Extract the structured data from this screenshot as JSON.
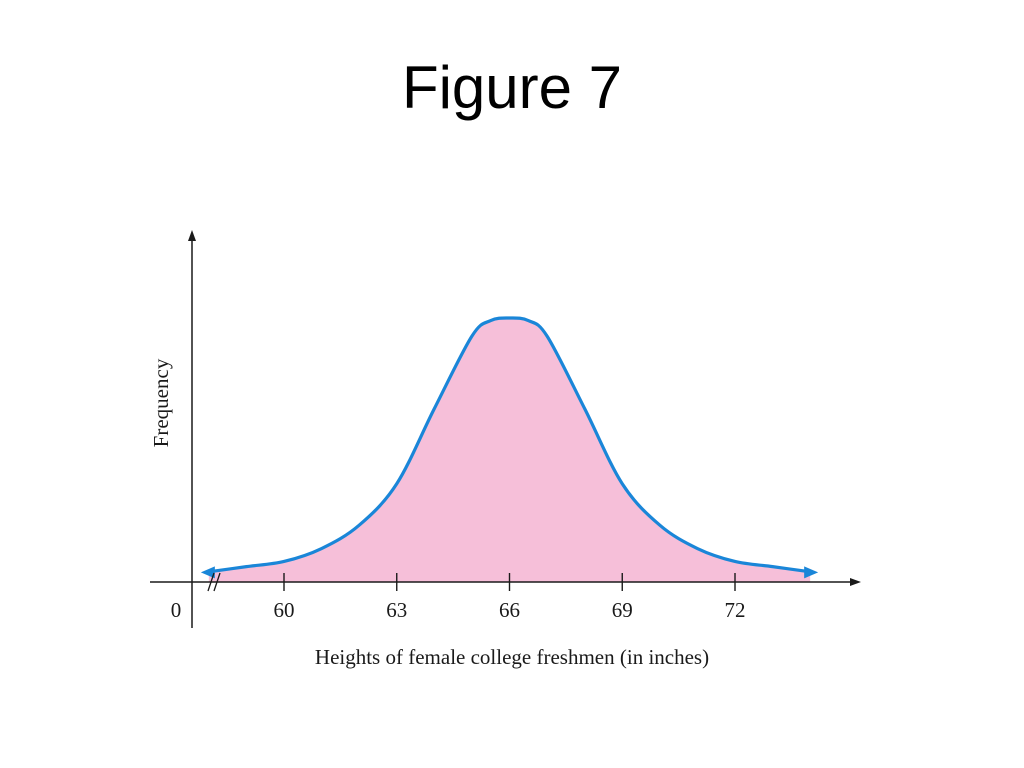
{
  "slide": {
    "title": "Figure 7"
  },
  "chart_data": {
    "type": "area",
    "xlabel": "Heights of female college freshmen (in inches)",
    "ylabel": "Frequency",
    "origin_label": "0",
    "x_ticks": [
      60,
      63,
      66,
      69,
      72
    ],
    "xlim": [
      57.5,
      74.5
    ],
    "ylim": [
      0,
      1.0
    ],
    "axis_break": true,
    "series": [
      {
        "x": [
          58,
          59,
          60,
          61,
          62,
          63,
          64,
          65,
          65.5,
          66,
          66.5,
          67,
          68,
          69,
          70,
          71,
          72,
          73,
          74
        ],
        "values": [
          0.02,
          0.04,
          0.06,
          0.11,
          0.2,
          0.36,
          0.65,
          0.93,
          0.99,
          1.0,
          0.99,
          0.93,
          0.65,
          0.36,
          0.2,
          0.11,
          0.06,
          0.04,
          0.02
        ]
      }
    ],
    "colors": {
      "curve": "#1a86d8",
      "fill": "#f6bfd9",
      "axis": "#1a1a1a"
    }
  }
}
